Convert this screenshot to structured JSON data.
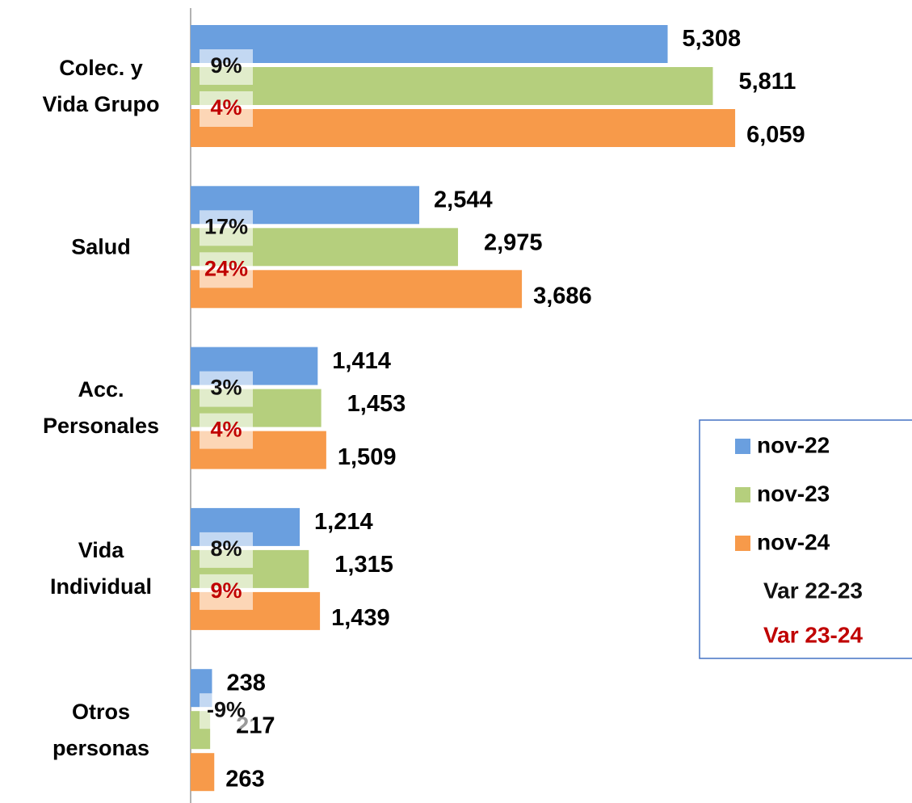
{
  "chart_data": {
    "type": "hbar",
    "categories": [
      "Colec. y\nVida Grupo",
      "Salud",
      "Acc.\nPersonales",
      "Vida\nIndividual",
      "Otros\npersonas"
    ],
    "series": [
      {
        "name": "nov-22",
        "color": "#6a9fdf",
        "values": [
          5308,
          2544,
          1414,
          1214,
          238
        ],
        "value_labels": [
          "5,308",
          "2,544",
          "1,414",
          "1,214",
          "238"
        ]
      },
      {
        "name": "nov-23",
        "color": "#b5cf7d",
        "values": [
          5811,
          2975,
          1453,
          1315,
          217
        ],
        "value_labels": [
          "5,811",
          "2,975",
          "1,453",
          "1,315",
          "217"
        ]
      },
      {
        "name": "nov-24",
        "color": "#f79a4a",
        "values": [
          6059,
          3686,
          1509,
          1439,
          263
        ],
        "value_labels": [
          "6,059",
          "3,686",
          "1,509",
          "1,439",
          "263"
        ]
      }
    ],
    "variations": [
      {
        "name": "Var 22-23",
        "color": "#111111",
        "values": [
          9,
          17,
          3,
          8,
          -9
        ],
        "value_labels": [
          "9%",
          "17%",
          "3%",
          "8%",
          "-9%"
        ]
      },
      {
        "name": "Var 23-24",
        "color": "#c00000",
        "values": [
          4,
          24,
          4,
          9,
          null
        ],
        "value_labels": [
          "4%",
          "24%",
          "4%",
          "9%",
          null
        ]
      }
    ],
    "xlim": [
      0,
      8000
    ],
    "legend": "right"
  }
}
